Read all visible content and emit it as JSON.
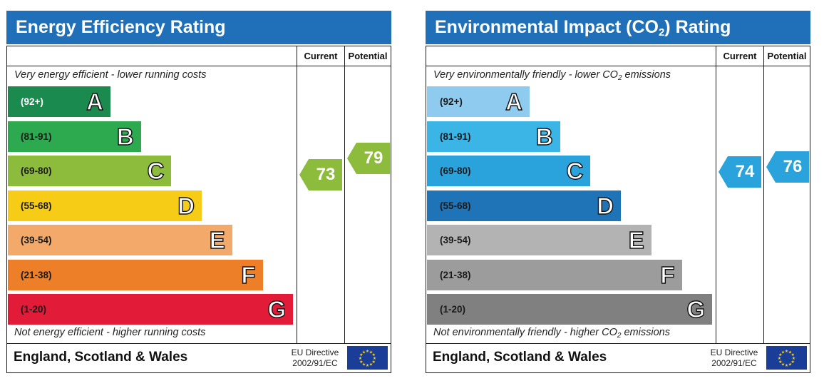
{
  "chart_data": [
    {
      "type": "bar",
      "title": "Energy Efficiency Rating",
      "top_note": "Very energy efficient - lower running costs",
      "bottom_note": "Not energy efficient - higher running costs",
      "column_headers": [
        "Current",
        "Potential"
      ],
      "bands": [
        {
          "letter": "A",
          "range": "(92+)",
          "color": "#1b8a4f"
        },
        {
          "letter": "B",
          "range": "(81-91)",
          "color": "#2daa4f"
        },
        {
          "letter": "C",
          "range": "(69-80)",
          "color": "#8dbb3c"
        },
        {
          "letter": "D",
          "range": "(55-68)",
          "color": "#f6cc16"
        },
        {
          "letter": "E",
          "range": "(39-54)",
          "color": "#f2a96a"
        },
        {
          "letter": "F",
          "range": "(21-38)",
          "color": "#ec7f27"
        },
        {
          "letter": "G",
          "range": "(1-20)",
          "color": "#e21b38"
        }
      ],
      "current": {
        "value": 73,
        "color": "#8dbb3c"
      },
      "potential": {
        "value": 79,
        "color": "#8dbb3c"
      },
      "footer": "England, Scotland & Wales",
      "directive_line1": "EU Directive",
      "directive_line2": "2002/91/EC"
    },
    {
      "type": "bar",
      "title_prefix": "Environmental Impact (CO",
      "title_sub": "2",
      "title_suffix": ") Rating",
      "top_note_prefix": "Very environmentally friendly - lower CO",
      "top_note_sub": "2",
      "top_note_suffix": " emissions",
      "bottom_note_prefix": "Not environmentally friendly - higher CO",
      "bottom_note_sub": "2",
      "bottom_note_suffix": " emissions",
      "column_headers": [
        "Current",
        "Potential"
      ],
      "bands": [
        {
          "letter": "A",
          "range": "(92+)",
          "color": "#8fcbee"
        },
        {
          "letter": "B",
          "range": "(81-91)",
          "color": "#3bb4e6"
        },
        {
          "letter": "C",
          "range": "(69-80)",
          "color": "#2aa2dc"
        },
        {
          "letter": "D",
          "range": "(55-68)",
          "color": "#1f73b7"
        },
        {
          "letter": "E",
          "range": "(39-54)",
          "color": "#b3b3b3"
        },
        {
          "letter": "F",
          "range": "(21-38)",
          "color": "#9c9c9c"
        },
        {
          "letter": "G",
          "range": "(1-20)",
          "color": "#808080"
        }
      ],
      "current": {
        "value": 74,
        "color": "#2aa2dc"
      },
      "potential": {
        "value": 76,
        "color": "#2aa2dc"
      },
      "footer": "England, Scotland & Wales",
      "directive_line1": "EU Directive",
      "directive_line2": "2002/91/EC"
    }
  ]
}
